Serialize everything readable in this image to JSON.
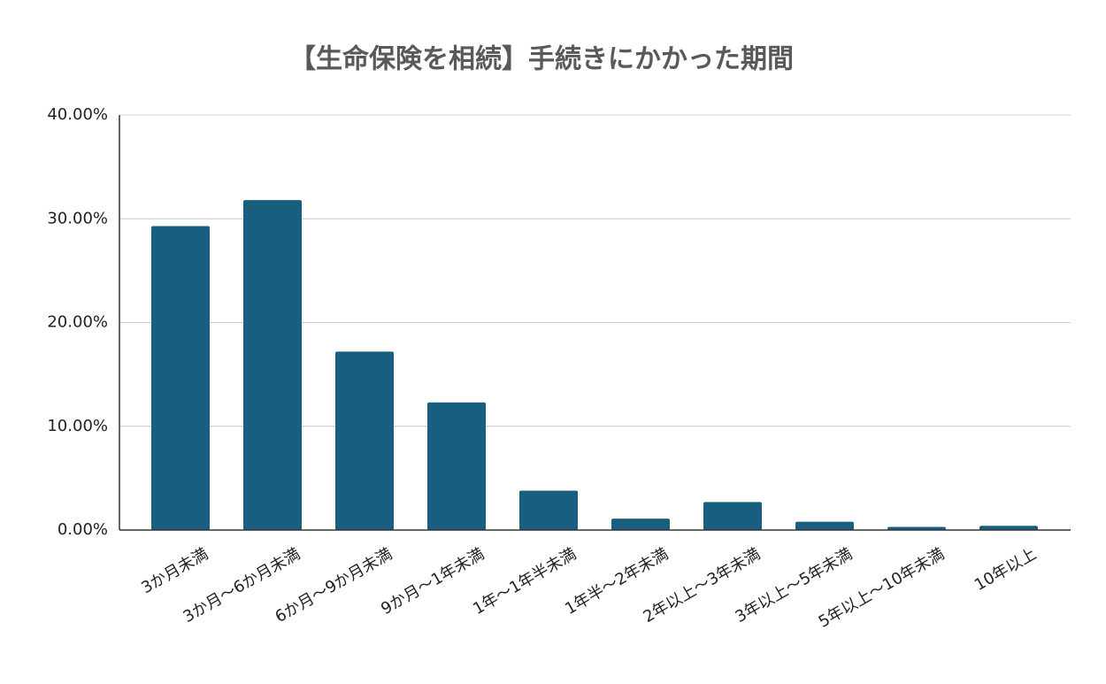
{
  "chart_data": {
    "type": "bar",
    "title": "【生命保険を相続】手続きにかかった期間",
    "categories": [
      "3か月未満",
      "3か月〜6か月未満",
      "6か月〜9か月未満",
      "9か月〜1年未満",
      "1年〜1年半未満",
      "1年半〜2年未満",
      "2年以上〜3年未満",
      "3年以上〜5年未満",
      "5年以上〜10年未満",
      "10年以上"
    ],
    "values": [
      29.3,
      31.8,
      17.2,
      12.3,
      3.8,
      1.1,
      2.7,
      0.8,
      0.3,
      0.4
    ],
    "color": "#175e7f",
    "ylim": [
      0,
      40
    ],
    "yticks": [
      {
        "value": 0,
        "label": "0.00%"
      },
      {
        "value": 10,
        "label": "10.00%"
      },
      {
        "value": 20,
        "label": "20.00%"
      },
      {
        "value": 30,
        "label": "30.00%"
      },
      {
        "value": 40,
        "label": "40.00%"
      }
    ],
    "grid": true
  }
}
